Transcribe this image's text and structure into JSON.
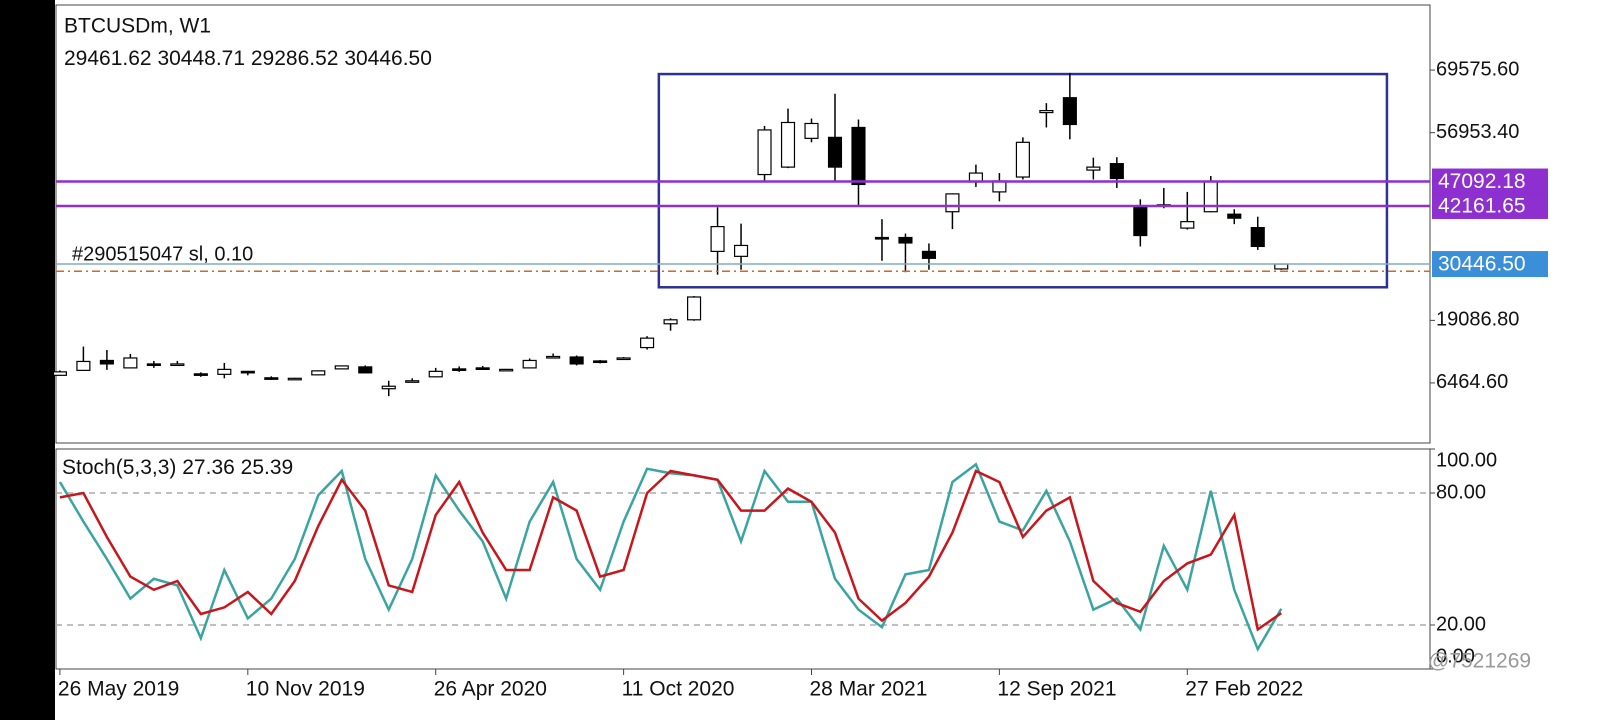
{
  "chart_data": [
    {
      "type": "candlestick",
      "title": "BTCUSDm, W1",
      "ohlc_labels": [
        "29461.62",
        "30448.71",
        "29286.52",
        "30446.50"
      ],
      "x": [
        0,
        3,
        6,
        9,
        12,
        15,
        18,
        21,
        24,
        27,
        30,
        33,
        36,
        39,
        42,
        45,
        48,
        51,
        54,
        57,
        60,
        63,
        66,
        69,
        72,
        75,
        78,
        81,
        84,
        87,
        90,
        93,
        96,
        99,
        102,
        105,
        108,
        111,
        114,
        117,
        120,
        123,
        126,
        129,
        132,
        135,
        138,
        141,
        144,
        147,
        150,
        153,
        156
      ],
      "open": [
        8000,
        9000,
        11000,
        9500,
        10300,
        10300,
        8300,
        8200,
        8800,
        7500,
        7200,
        8100,
        9300,
        9700,
        5300,
        6800,
        7700,
        9300,
        9500,
        9100,
        9500,
        11700,
        11700,
        10900,
        11400,
        13600,
        18400,
        19200,
        33000,
        32000,
        48500,
        50000,
        55800,
        56000,
        58000,
        35800,
        35800,
        33000,
        41000,
        47000,
        45000,
        48000,
        61000,
        64000,
        49400,
        50700,
        42000,
        42400,
        37700,
        41000,
        40500,
        37800,
        29461.62
      ],
      "high": [
        9000,
        13800,
        13100,
        12300,
        10900,
        10900,
        8600,
        10500,
        8900,
        7800,
        7500,
        9000,
        9800,
        10000,
        6900,
        7400,
        9500,
        9800,
        9900,
        9300,
        11400,
        12400,
        12000,
        11100,
        11700,
        15900,
        19500,
        24000,
        41900,
        38600,
        58300,
        61800,
        59800,
        64800,
        59600,
        39500,
        36600,
        34600,
        44700,
        50500,
        48800,
        56000,
        62900,
        69000,
        51900,
        52000,
        43500,
        45800,
        45000,
        48200,
        41500,
        40000,
        30448.71
      ],
      "low": [
        7900,
        8900,
        9100,
        9400,
        9500,
        9900,
        7700,
        7400,
        8000,
        7100,
        7100,
        8000,
        9200,
        8400,
        3800,
        6600,
        7600,
        8700,
        9200,
        8900,
        9400,
        11500,
        10000,
        10400,
        11200,
        13200,
        17000,
        19000,
        28300,
        29300,
        47000,
        49800,
        55000,
        47000,
        42000,
        31100,
        28800,
        29300,
        37500,
        46000,
        43100,
        47500,
        58000,
        55600,
        47500,
        45800,
        34000,
        41700,
        37400,
        40900,
        38500,
        33300,
        29286.52
      ],
      "close": [
        8700,
        10800,
        10300,
        11500,
        10100,
        10300,
        8200,
        9200,
        8500,
        7300,
        7400,
        8900,
        9900,
        8500,
        5800,
        6900,
        8800,
        9200,
        9400,
        9200,
        11000,
        11800,
        10300,
        10700,
        11500,
        15500,
        19200,
        23800,
        38000,
        34200,
        57500,
        59000,
        58800,
        50000,
        46500,
        35600,
        34700,
        31600,
        44600,
        48800,
        47200,
        55000,
        61400,
        58600,
        50000,
        47700,
        36200,
        42200,
        39000,
        47100,
        39700,
        34000,
        30446.5
      ],
      "bull_color": "#ffffff",
      "bear_color": "#000000",
      "outline_color": "#000000",
      "xlim": [
        -0.5,
        175
      ],
      "xticks": [
        {
          "value": 0,
          "label": "26 May 2019"
        },
        {
          "value": 24,
          "label": "10 Nov 2019"
        },
        {
          "value": 48,
          "label": "26 Apr 2020"
        },
        {
          "value": 72,
          "label": "11 Oct 2020"
        },
        {
          "value": 96,
          "label": "28 Mar 2021"
        },
        {
          "value": 120,
          "label": "12 Sep 2021"
        },
        {
          "value": 144,
          "label": "27 Feb 2022"
        }
      ],
      "ylim": [
        -5650,
        82700
      ],
      "yticks": [
        {
          "value": 69575.6,
          "label": "69575.60"
        },
        {
          "value": 56953.4,
          "label": "56953.40"
        },
        {
          "value": 19086.8,
          "label": "19086.80"
        },
        {
          "value": 6464.6,
          "label": "6464.60"
        }
      ],
      "rectangle": {
        "x": [
          76.5,
          169.5
        ],
        "price": [
          68770,
          25760
        ],
        "color": "#2e3192"
      },
      "levels": [
        {
          "value": 47092.18,
          "label": "47092.18",
          "color": "#8e2fd0"
        },
        {
          "value": 42161.65,
          "label": "42161.65",
          "color": "#8e2fd0"
        }
      ],
      "bid": {
        "value": 30446.5,
        "label": "30446.50",
        "color": "#7fb0b8",
        "label_color": "#3a8fd8"
      },
      "order": {
        "value": 28985,
        "label": "#290515047 sl, 0.10",
        "color": "#d2691e"
      },
      "watermark": "@7521269"
    },
    {
      "type": "line",
      "title": "Stoch(5,3,3)",
      "x": [
        0,
        3,
        6,
        9,
        12,
        15,
        18,
        21,
        24,
        27,
        30,
        33,
        36,
        39,
        42,
        45,
        48,
        51,
        54,
        57,
        60,
        63,
        66,
        69,
        72,
        75,
        78,
        81,
        84,
        87,
        90,
        93,
        96,
        99,
        102,
        105,
        108,
        111,
        114,
        117,
        120,
        123,
        126,
        129,
        132,
        135,
        138,
        141,
        144,
        147,
        150,
        153,
        156
      ],
      "series": [
        {
          "name": "Main",
          "color": "#3aa5a0",
          "values": [
            85,
            67,
            50,
            32,
            41,
            38,
            14,
            45,
            23,
            32,
            50,
            79,
            90,
            50,
            27,
            50,
            88,
            72,
            58,
            32,
            67,
            85,
            50,
            36,
            67,
            91,
            89,
            88,
            86,
            58,
            90,
            76,
            76,
            41,
            27,
            19,
            43,
            45,
            85,
            93,
            67,
            63,
            81,
            58,
            27,
            32,
            18,
            56,
            36,
            81,
            36,
            9,
            27.36
          ]
        },
        {
          "name": "Signal",
          "color": "#c8161d",
          "values": [
            78,
            80,
            60,
            42,
            36,
            40,
            25,
            28,
            35,
            25,
            40,
            65,
            86,
            72,
            38,
            35,
            70,
            85,
            62,
            45,
            45,
            78,
            72,
            42,
            45,
            80,
            90,
            88,
            86,
            72,
            72,
            82,
            76,
            62,
            32,
            22,
            30,
            42,
            62,
            90,
            85,
            60,
            72,
            78,
            40,
            30,
            26,
            40,
            48,
            52,
            70,
            18,
            25.39
          ]
        }
      ],
      "xlim": [
        -0.5,
        175
      ],
      "ylim": [
        0,
        100
      ],
      "yticks": [
        {
          "value": 100,
          "label": "100.00"
        },
        {
          "value": 80,
          "label": "80.00"
        },
        {
          "value": 20,
          "label": "20.00"
        },
        {
          "value": 0,
          "label": "0.00"
        }
      ],
      "levels": [
        80,
        20
      ]
    }
  ]
}
